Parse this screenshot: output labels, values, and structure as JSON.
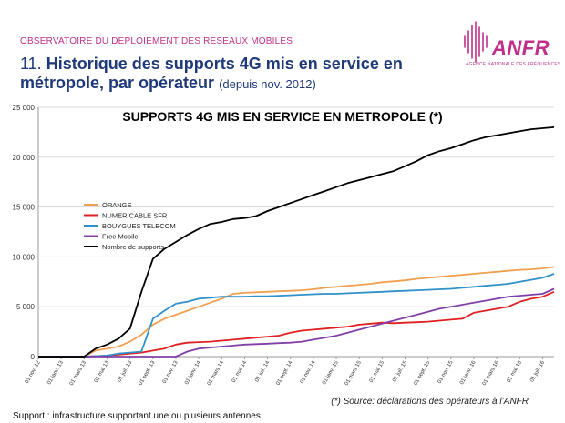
{
  "header": {
    "subtitle": "OBSERVATOIRE DU DEPLOIEMENT DES RESEAUX MOBILES",
    "title_number": "11.",
    "title_main": "Historique des supports 4G mis en service en métropole, par opérateur",
    "title_small": "(depuis nov. 2012)"
  },
  "logo": {
    "name": "ANFR",
    "tagline": "AGENCE NATIONALE DES FRÉQUENCES"
  },
  "source": "(*) Source: déclarations des opérateurs à l’ANFR",
  "footer": "Support : infrastructure supportant une ou plusieurs antennes",
  "chart_data": {
    "type": "line",
    "title": "SUPPORTS 4G MIS EN SERVICE EN METROPOLE (*)",
    "xlabel": "",
    "ylabel": "",
    "ylim": [
      0,
      25000
    ],
    "yticks": [
      0,
      5000,
      10000,
      15000,
      20000,
      25000
    ],
    "ytick_labels": [
      "0",
      "5 000",
      "10 000",
      "15 000",
      "20 000",
      "25 000"
    ],
    "xtick_labels": [
      "01 nov. 12",
      "01 janv. 13",
      "01 mars 13",
      "01 mai 13",
      "01 juil. 13",
      "01 sept. 13",
      "01 nov. 13",
      "01 janv. 14",
      "01 mars 14",
      "01 mai 14",
      "01 juil. 14",
      "01 sept. 14",
      "01 nov. 14",
      "01 janv. 15",
      "01 mars 15",
      "01 mai 15",
      "01 juil. 15",
      "01 sept. 15",
      "01 nov. 15",
      "01 janv. 16",
      "01 mars 16",
      "01 mai 16",
      "01 juil. 16"
    ],
    "x": [
      "2012-11",
      "2012-12",
      "2013-01",
      "2013-02",
      "2013-03",
      "2013-04",
      "2013-05",
      "2013-06",
      "2013-07",
      "2013-08",
      "2013-09",
      "2013-10",
      "2013-11",
      "2013-12",
      "2014-01",
      "2014-02",
      "2014-03",
      "2014-04",
      "2014-05",
      "2014-06",
      "2014-07",
      "2014-08",
      "2014-09",
      "2014-10",
      "2014-11",
      "2014-12",
      "2015-01",
      "2015-02",
      "2015-03",
      "2015-04",
      "2015-05",
      "2015-06",
      "2015-07",
      "2015-08",
      "2015-09",
      "2015-10",
      "2015-11",
      "2015-12",
      "2016-01",
      "2016-02",
      "2016-03",
      "2016-04",
      "2016-05",
      "2016-06",
      "2016-07",
      "2016-08"
    ],
    "grid": true,
    "legend_position": "left",
    "series": [
      {
        "name": "ORANGE",
        "color": "#f0a050",
        "values": [
          0,
          0,
          0,
          0,
          0,
          600,
          800,
          1000,
          1500,
          2200,
          3200,
          3800,
          4200,
          4600,
          5000,
          5400,
          5800,
          6300,
          6400,
          6450,
          6500,
          6550,
          6600,
          6650,
          6750,
          6900,
          7000,
          7100,
          7200,
          7300,
          7450,
          7550,
          7650,
          7800,
          7900,
          8000,
          8100,
          8200,
          8300,
          8400,
          8500,
          8600,
          8700,
          8750,
          8850,
          9000
        ]
      },
      {
        "name": "NUMERICABLE SFR",
        "color": "#e02020",
        "values": [
          0,
          0,
          0,
          0,
          0,
          50,
          100,
          200,
          300,
          400,
          600,
          800,
          1200,
          1400,
          1450,
          1500,
          1600,
          1700,
          1800,
          1900,
          2000,
          2100,
          2400,
          2600,
          2700,
          2800,
          2900,
          3000,
          3200,
          3300,
          3400,
          3350,
          3400,
          3450,
          3500,
          3600,
          3700,
          3800,
          4400,
          4600,
          4800,
          5000,
          5500,
          5800,
          6000,
          6500
        ]
      },
      {
        "name": "BOUYGUES TELECOM",
        "color": "#3090c8",
        "values": [
          0,
          0,
          0,
          0,
          0,
          50,
          100,
          300,
          400,
          500,
          3800,
          4600,
          5300,
          5500,
          5800,
          5900,
          6000,
          6000,
          6000,
          6050,
          6050,
          6100,
          6150,
          6200,
          6250,
          6300,
          6300,
          6350,
          6400,
          6450,
          6500,
          6550,
          6600,
          6650,
          6700,
          6750,
          6800,
          6900,
          7000,
          7100,
          7200,
          7300,
          7500,
          7700,
          7900,
          8300
        ]
      },
      {
        "name": "Free Mobile",
        "color": "#8040a8",
        "values": [
          0,
          0,
          0,
          0,
          0,
          0,
          0,
          0,
          0,
          0,
          0,
          0,
          0,
          500,
          800,
          900,
          1000,
          1100,
          1200,
          1250,
          1300,
          1350,
          1400,
          1500,
          1700,
          1900,
          2100,
          2400,
          2700,
          3000,
          3300,
          3600,
          3900,
          4200,
          4500,
          4800,
          5000,
          5200,
          5400,
          5600,
          5800,
          6000,
          6100,
          6200,
          6300,
          6800
        ]
      },
      {
        "name": "Nombre de supports",
        "color": "#000000",
        "values": [
          0,
          0,
          0,
          0,
          0,
          800,
          1200,
          1800,
          2800,
          6500,
          9800,
          10800,
          11500,
          12200,
          12800,
          13300,
          13500,
          13800,
          13900,
          14100,
          14600,
          15000,
          15400,
          15800,
          16200,
          16600,
          17000,
          17400,
          17700,
          18000,
          18300,
          18600,
          19100,
          19600,
          20200,
          20600,
          20900,
          21300,
          21700,
          22000,
          22200,
          22400,
          22600,
          22800,
          22900,
          23000
        ]
      }
    ]
  }
}
